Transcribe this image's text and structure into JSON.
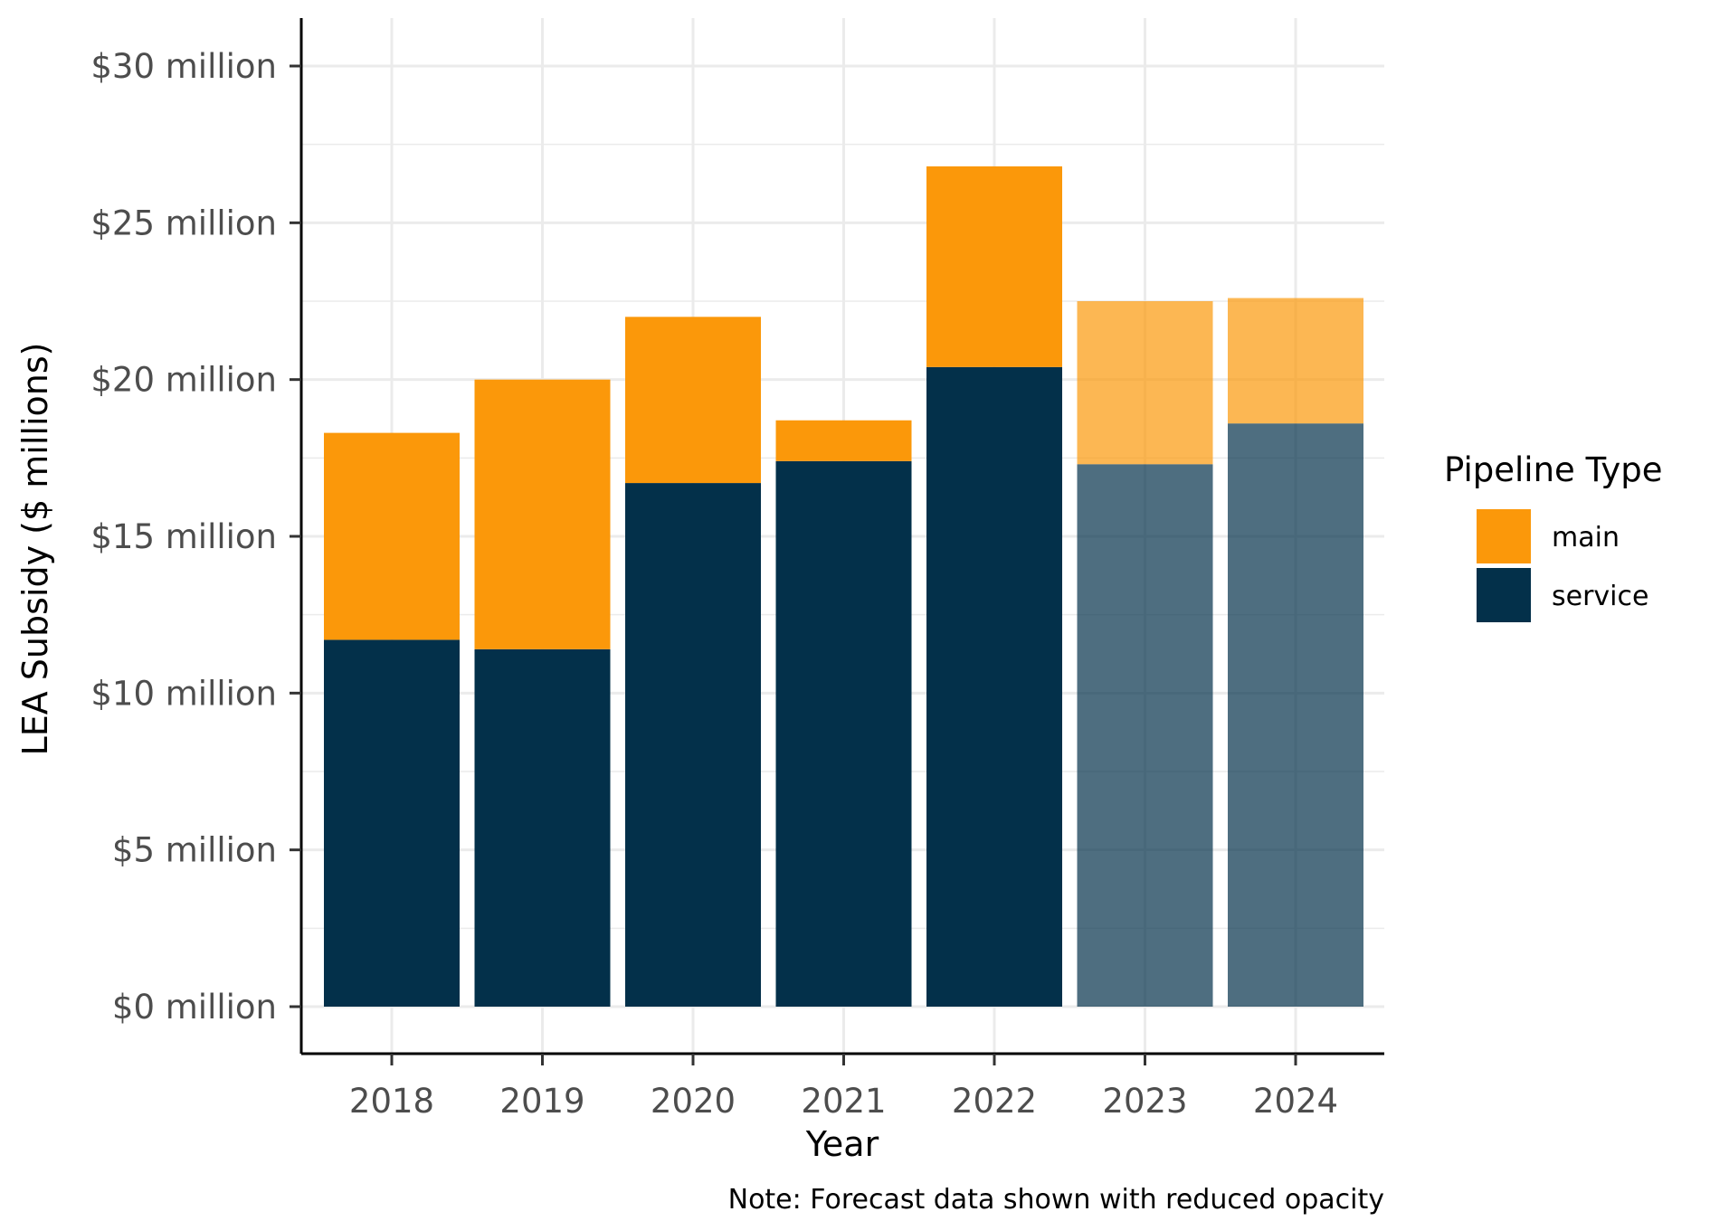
{
  "chart_data": {
    "type": "bar",
    "stacked": true,
    "categories": [
      "2018",
      "2019",
      "2020",
      "2021",
      "2022",
      "2023",
      "2024"
    ],
    "series": [
      {
        "name": "service",
        "color": "#03304a",
        "values": [
          11.7,
          11.4,
          16.7,
          17.4,
          20.4,
          17.3,
          18.6
        ]
      },
      {
        "name": "main",
        "color": "#fb980a",
        "values": [
          6.6,
          8.6,
          5.3,
          1.3,
          6.4,
          5.2,
          4.0
        ]
      }
    ],
    "forecast": [
      false,
      false,
      false,
      false,
      false,
      true,
      true
    ],
    "forecast_opacity": 0.7,
    "xlabel": "Year",
    "ylabel": "LEA Subsidy ($ millions)",
    "ylim": [
      0,
      30
    ],
    "y_ticks": [
      0,
      5,
      10,
      15,
      20,
      25,
      30
    ],
    "y_tick_labels": [
      "$0 million",
      "$5 million",
      "$10 million",
      "$15 million",
      "$20 million",
      "$25 million",
      "$30 million"
    ],
    "grid": true,
    "legend": {
      "title": "Pipeline Type",
      "placement": "right",
      "entries": [
        {
          "label": "main",
          "color": "#fb980a"
        },
        {
          "label": "service",
          "color": "#03304a"
        }
      ]
    },
    "caption": "Note: Forecast data shown with reduced opacity"
  }
}
